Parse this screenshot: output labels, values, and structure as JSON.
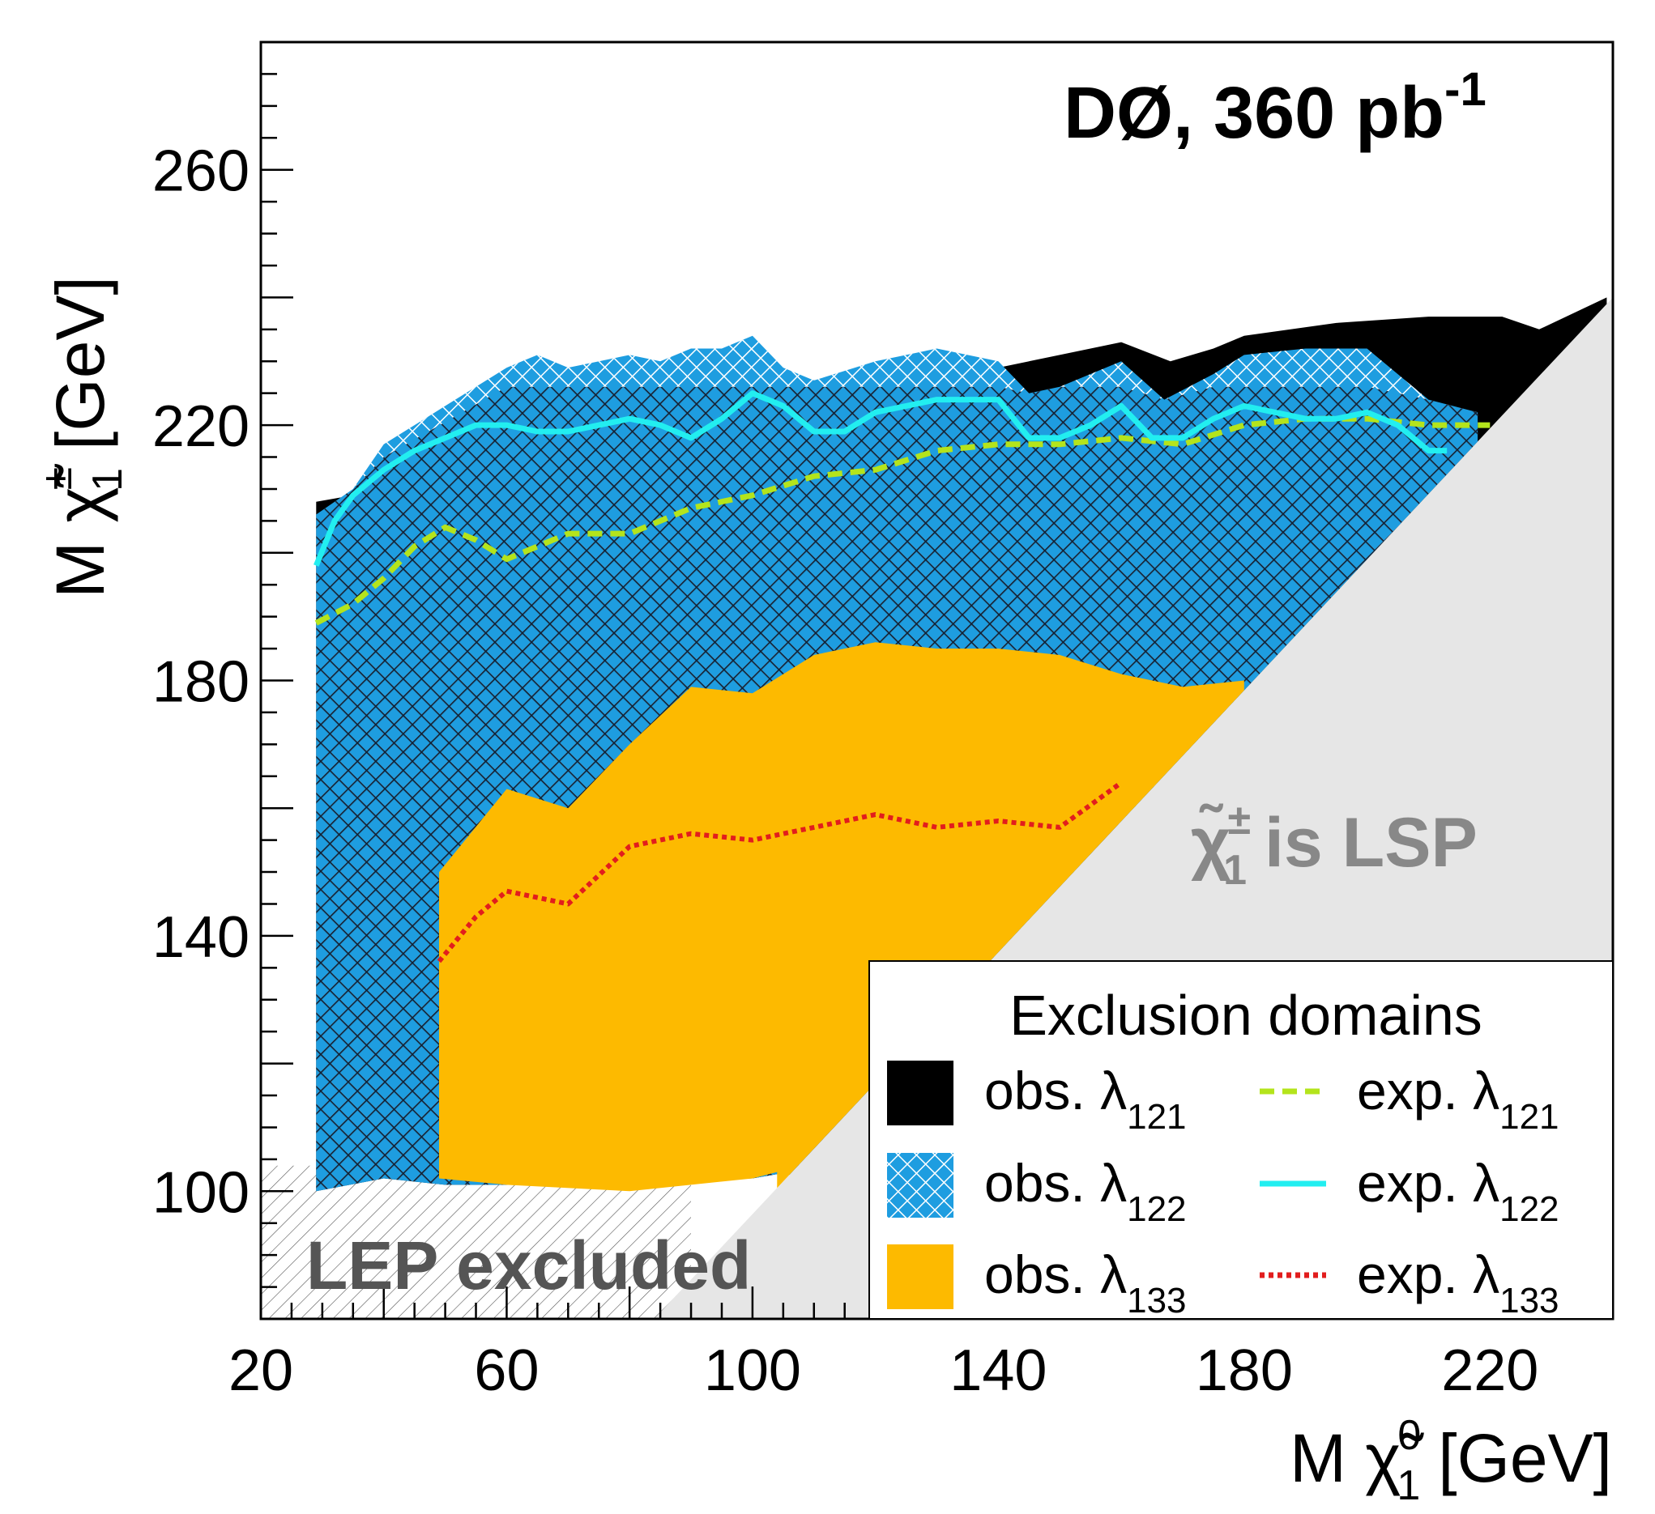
{
  "chart_data": {
    "type": "area",
    "experiment_label": "DØ, 360 pb",
    "experiment_label_sup": "-1",
    "xlabel": "M χ̃",
    "xlabel_sup": "0",
    "xlabel_sub": "1",
    "xlabel_unit": "[GeV]",
    "ylabel": "M χ̃",
    "ylabel_sup": "±",
    "ylabel_sub": "1",
    "ylabel_unit": "[GeV]",
    "xlim": [
      20,
      240
    ],
    "ylim": [
      80,
      280
    ],
    "x_major_ticks": [
      20,
      60,
      100,
      140,
      180,
      220
    ],
    "y_major_ticks": [
      100,
      140,
      180,
      220,
      260
    ],
    "x_tick_labels": [
      "20",
      "60",
      "100",
      "140",
      "180",
      "220"
    ],
    "y_tick_labels": [
      "100",
      "140",
      "180",
      "220",
      "260"
    ],
    "grid": false,
    "legend_placement": "bottom-right",
    "legend": {
      "title": "Exclusion domains",
      "entries": [
        {
          "id": "obs121",
          "text": "obs. λ",
          "sub": "121",
          "style": "filled",
          "color": "#000000"
        },
        {
          "id": "exp121",
          "text": "exp. λ",
          "sub": "121",
          "style": "dashed",
          "color": "#b4e41c"
        },
        {
          "id": "obs122",
          "text": "obs. λ",
          "sub": "122",
          "style": "crosshatch",
          "color": "#1e9de0"
        },
        {
          "id": "exp122",
          "text": "exp. λ",
          "sub": "122",
          "style": "solid",
          "color": "#22eef0"
        },
        {
          "id": "obs133",
          "text": "obs. λ",
          "sub": "133",
          "style": "filled",
          "color": "#fdba00"
        },
        {
          "id": "exp133",
          "text": "exp. λ",
          "sub": "133",
          "style": "dotted",
          "color": "#e21d1d"
        }
      ]
    },
    "annotations": {
      "lsp_text": "is LSP",
      "lsp_symbol": "χ̃",
      "lsp_sup": "±",
      "lsp_sub": "1",
      "lep_text": "LEP excluded"
    },
    "regions": {
      "obs121_upper": [
        [
          29,
          208
        ],
        [
          35,
          209
        ],
        [
          45,
          213
        ],
        [
          60,
          220
        ],
        [
          80,
          224
        ],
        [
          100,
          226
        ],
        [
          120,
          228
        ],
        [
          140,
          229
        ],
        [
          150,
          231
        ],
        [
          160,
          233
        ],
        [
          168,
          230
        ],
        [
          175,
          232
        ],
        [
          180,
          234
        ],
        [
          195,
          236
        ],
        [
          210,
          237
        ],
        [
          222,
          237
        ],
        [
          228,
          235
        ],
        [
          239,
          240
        ]
      ],
      "obs122_upper": [
        [
          29,
          206
        ],
        [
          35,
          210
        ],
        [
          40,
          217
        ],
        [
          45,
          220
        ],
        [
          50,
          223
        ],
        [
          55,
          226
        ],
        [
          60,
          229
        ],
        [
          65,
          231
        ],
        [
          70,
          229
        ],
        [
          80,
          231
        ],
        [
          85,
          230
        ],
        [
          90,
          232
        ],
        [
          95,
          232
        ],
        [
          100,
          234
        ],
        [
          105,
          229
        ],
        [
          110,
          227
        ],
        [
          120,
          230
        ],
        [
          130,
          232
        ],
        [
          140,
          230
        ],
        [
          145,
          225
        ],
        [
          150,
          226
        ],
        [
          160,
          230
        ],
        [
          167,
          224
        ],
        [
          175,
          228
        ],
        [
          180,
          231
        ],
        [
          190,
          232
        ],
        [
          200,
          232
        ],
        [
          210,
          224
        ],
        [
          218,
          222
        ]
      ],
      "obs122_lower_edge": [
        [
          29,
          100
        ],
        [
          40,
          102
        ],
        [
          50,
          101
        ],
        [
          70,
          101
        ],
        [
          100,
          102
        ],
        [
          106,
          103
        ]
      ],
      "obs133_upper": [
        [
          49,
          150
        ],
        [
          60,
          163
        ],
        [
          70,
          160
        ],
        [
          80,
          170
        ],
        [
          90,
          179
        ],
        [
          100,
          178
        ],
        [
          110,
          184
        ],
        [
          120,
          186
        ],
        [
          130,
          185
        ],
        [
          140,
          185
        ],
        [
          150,
          184
        ],
        [
          160,
          181
        ],
        [
          170,
          179
        ],
        [
          180,
          180
        ]
      ],
      "obs133_lower": [
        [
          49,
          102
        ],
        [
          60,
          101
        ],
        [
          80,
          100
        ],
        [
          100,
          102
        ],
        [
          104,
          103
        ]
      ],
      "lsp_diagonal": [
        [
          84,
          80
        ],
        [
          240,
          240
        ]
      ],
      "lep_region": [
        [
          20,
          104
        ],
        [
          90,
          104
        ],
        [
          90,
          80
        ],
        [
          20,
          80
        ]
      ]
    },
    "series": [
      {
        "name": "exp. λ121",
        "color": "#b4e41c",
        "style": "dashed",
        "x": [
          29,
          35,
          40,
          45,
          50,
          55,
          60,
          65,
          70,
          80,
          90,
          100,
          110,
          120,
          130,
          140,
          150,
          160,
          170,
          180,
          190,
          200,
          210,
          220
        ],
        "y": [
          189,
          192,
          196,
          201,
          204,
          202,
          199,
          201,
          203,
          203,
          207,
          209,
          212,
          213,
          216,
          217,
          217,
          218,
          217,
          220,
          221,
          221,
          220,
          220
        ]
      },
      {
        "name": "exp. λ122",
        "color": "#22eef0",
        "style": "solid",
        "x": [
          29,
          32,
          35,
          40,
          45,
          50,
          55,
          60,
          65,
          70,
          75,
          80,
          85,
          90,
          95,
          100,
          105,
          110,
          115,
          120,
          130,
          140,
          145,
          150,
          155,
          160,
          165,
          170,
          175,
          180,
          185,
          190,
          195,
          200,
          205,
          210,
          213
        ],
        "y": [
          198,
          205,
          209,
          213,
          216,
          218,
          220,
          220,
          219,
          219,
          220,
          221,
          220,
          218,
          221,
          225,
          223,
          219,
          219,
          222,
          224,
          224,
          218,
          218,
          220,
          223,
          218,
          218,
          221,
          223,
          222,
          221,
          221,
          222,
          220,
          216,
          216
        ]
      },
      {
        "name": "exp. λ133",
        "color": "#e21d1d",
        "style": "dotted",
        "x": [
          49,
          55,
          60,
          65,
          70,
          80,
          90,
          100,
          110,
          120,
          130,
          140,
          150,
          160
        ],
        "y": [
          136,
          143,
          147,
          146,
          145,
          154,
          156,
          155,
          157,
          159,
          157,
          158,
          157,
          164
        ]
      }
    ]
  }
}
